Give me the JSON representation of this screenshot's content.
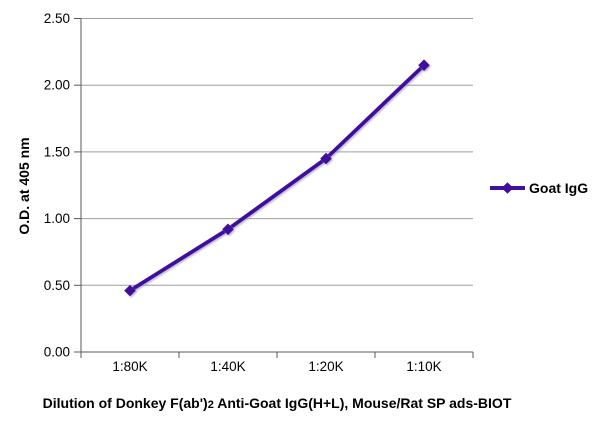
{
  "chart_data": {
    "type": "line",
    "categories": [
      "1:80K",
      "1:40K",
      "1:20K",
      "1:10K"
    ],
    "series": [
      {
        "name": "Goat IgG",
        "values": [
          0.46,
          0.92,
          1.45,
          2.15
        ]
      }
    ],
    "ylabel": "O.D. at 405 nm",
    "xlabel": "Dilution of Donkey F(ab')2 Anti-Goat IgG(H+L), Mouse/Rat SP ads-BIOT",
    "xlabel_parts": {
      "prefix": "Dilution of Donkey F(ab')",
      "subscript": "2",
      "suffix": " Anti-Goat IgG(H+L), Mouse/Rat SP ads-BIOT"
    },
    "ylim": [
      0,
      2.5
    ],
    "yticks": [
      "0.00",
      "0.50",
      "1.00",
      "1.50",
      "2.00",
      "2.50"
    ],
    "grid": "horizontal-only",
    "legend": {
      "position": "right",
      "entries": [
        "Goat IgG"
      ]
    },
    "marker": "diamond",
    "colors": {
      "series": "#40109d",
      "gridline": "#9e9e9e",
      "axis": "#595959",
      "text": "#000000",
      "shadow": "#9b94b5"
    }
  }
}
